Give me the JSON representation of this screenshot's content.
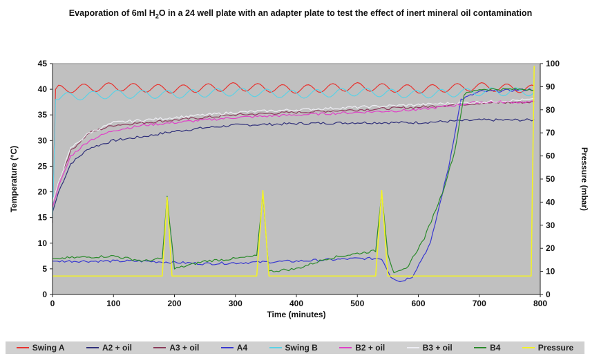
{
  "chart_data": {
    "type": "line",
    "title_pre": "Evaporation of 6ml H",
    "title_sub": "2",
    "title_post": "O in a 24 well plate with an adapter plate to test the effect of inert mineral oil contamination",
    "xlabel": "Time (minutes)",
    "ylabel": "Temperature (°C)",
    "y2label": "Pressure (mbar)",
    "xlim": [
      0,
      800
    ],
    "ylim": [
      0,
      45
    ],
    "y2lim": [
      0,
      100
    ],
    "x_ticks": [
      "0",
      "100",
      "200",
      "300",
      "400",
      "500",
      "600",
      "700",
      "800"
    ],
    "y_ticks": [
      "0",
      "5",
      "10",
      "15",
      "20",
      "25",
      "30",
      "35",
      "40",
      "45"
    ],
    "y2_ticks": [
      "0",
      "10",
      "20",
      "30",
      "40",
      "50",
      "60",
      "70",
      "80",
      "90",
      "100"
    ],
    "grid": false,
    "legend_position": "bottom",
    "background": "#c0c0c0",
    "series": [
      {
        "name": "Swing A",
        "axis": "left",
        "color": "#e8322e",
        "x": [
          0,
          5,
          10,
          100,
          200,
          300,
          400,
          500,
          600,
          700,
          790
        ],
        "y": [
          14,
          40,
          40,
          40.5,
          40,
          40.5,
          40,
          40.5,
          40,
          40.5,
          40
        ],
        "oscillation": 0.8
      },
      {
        "name": "A2 + oil",
        "axis": "left",
        "color": "#30307a",
        "x": [
          0,
          10,
          30,
          60,
          100,
          150,
          200,
          250,
          300,
          400,
          500,
          600,
          700,
          790
        ],
        "y": [
          16,
          20,
          25.5,
          28.5,
          30,
          30.8,
          31.8,
          32.5,
          33,
          33.3,
          33.5,
          33.5,
          34,
          34
        ]
      },
      {
        "name": "A3 + oil",
        "axis": "left",
        "color": "#8a3a5a",
        "x": [
          0,
          10,
          30,
          60,
          100,
          150,
          200,
          250,
          300,
          400,
          500,
          600,
          700,
          790
        ],
        "y": [
          18,
          22,
          28,
          31.5,
          33,
          33.5,
          34,
          34.5,
          35,
          35.5,
          36,
          36.5,
          37.3,
          37.5
        ]
      },
      {
        "name": "A4",
        "axis": "left",
        "color": "#3838d0",
        "x": [
          0,
          150,
          250,
          400,
          500,
          540,
          555,
          570,
          590,
          620,
          650,
          670,
          700,
          790
        ],
        "y": [
          6.5,
          6.5,
          6,
          6.5,
          7,
          7,
          3.5,
          2.5,
          3.5,
          10,
          25,
          38,
          39.5,
          40
        ]
      },
      {
        "name": "Swing B",
        "axis": "left",
        "color": "#5ad2e6",
        "x": [
          0,
          5,
          10,
          100,
          200,
          300,
          400,
          500,
          600,
          700,
          790
        ],
        "y": [
          14,
          38,
          38.5,
          39,
          39,
          39.5,
          39,
          39.5,
          39,
          39.5,
          39.5
        ],
        "oscillation": 0.8
      },
      {
        "name": "B2 + oil",
        "axis": "left",
        "color": "#e040c8",
        "x": [
          0,
          10,
          30,
          60,
          100,
          150,
          200,
          250,
          300,
          400,
          500,
          600,
          700,
          790
        ],
        "y": [
          17,
          21,
          27,
          30,
          32,
          33,
          33.5,
          34,
          34.5,
          35,
          35.5,
          36,
          37.5,
          37.5
        ]
      },
      {
        "name": "B3 + oil",
        "axis": "left",
        "color": "#eeeef4",
        "x": [
          0,
          10,
          30,
          60,
          100,
          150,
          200,
          250,
          300,
          400,
          500,
          600,
          700,
          790
        ],
        "y": [
          18,
          22,
          28.5,
          31.5,
          33.5,
          34,
          34.5,
          35,
          35.5,
          36,
          36.5,
          37,
          37.5,
          38
        ]
      },
      {
        "name": "B4",
        "axis": "left",
        "color": "#2a8a2a",
        "x": [
          0,
          100,
          150,
          180,
          188,
          200,
          250,
          300,
          335,
          345,
          355,
          400,
          450,
          500,
          530,
          540,
          550,
          560,
          580,
          610,
          640,
          660,
          675,
          700,
          790
        ],
        "y": [
          7,
          7.5,
          6.5,
          7,
          19,
          5,
          6.5,
          7,
          7.5,
          19.5,
          4.5,
          5,
          7,
          8,
          8.5,
          20,
          8,
          4,
          5,
          11,
          20,
          28,
          39,
          40,
          40
        ]
      },
      {
        "name": "Pressure",
        "axis": "right",
        "color": "#f2f226",
        "x": [
          0,
          180,
          188,
          196,
          335,
          345,
          355,
          530,
          540,
          550,
          785,
          790
        ],
        "y": [
          8,
          8,
          42,
          8,
          8,
          45,
          8,
          8,
          45,
          8,
          8,
          99
        ]
      }
    ]
  }
}
